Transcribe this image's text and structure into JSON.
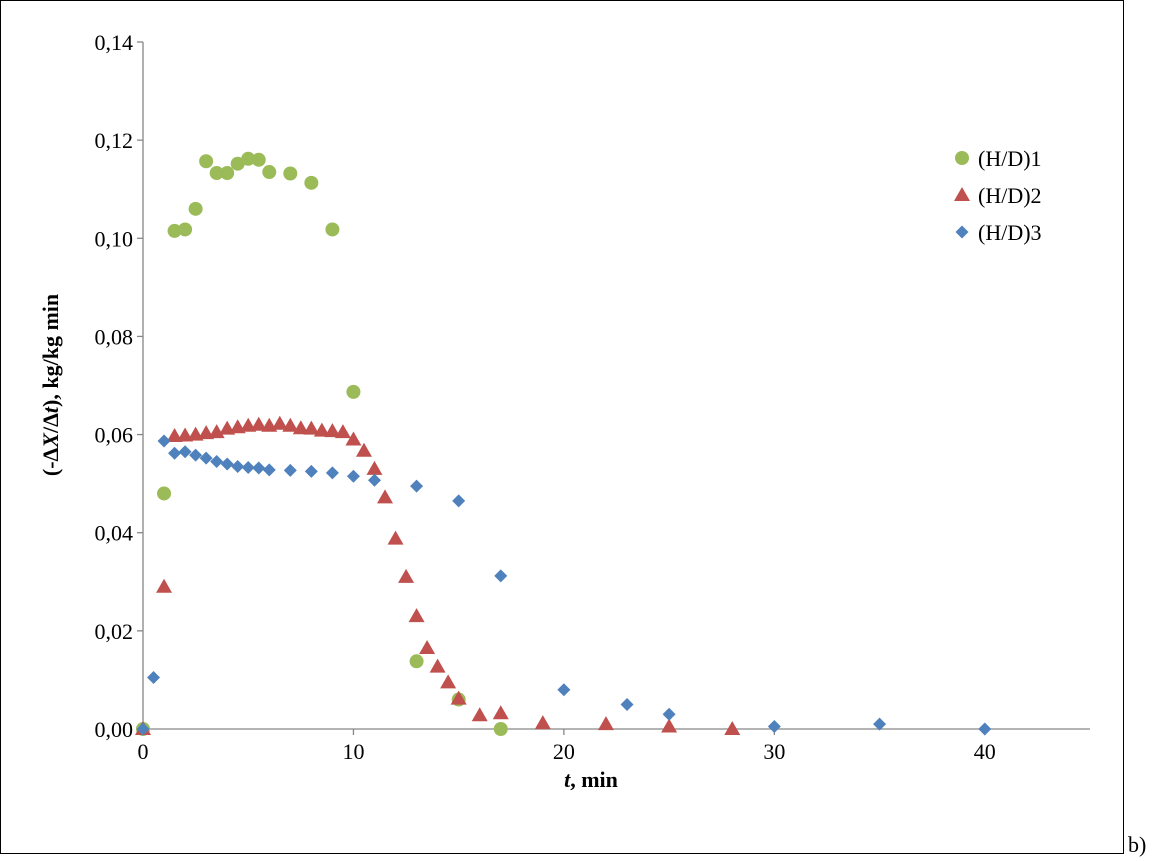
{
  "chart_data": {
    "type": "scatter",
    "title": "",
    "xlabel_italic": "t",
    "xlabel_rest": ", min",
    "ylabel_pre": "(-Δ",
    "ylabel_x": "X",
    "ylabel_mid": "/Δ",
    "ylabel_t": "t",
    "ylabel_post": "), kg/kg min",
    "xlim": [
      0,
      45
    ],
    "ylim": [
      0,
      0.14
    ],
    "x_ticks": [
      0,
      10,
      20,
      30,
      40
    ],
    "x_tick_labels": [
      "0",
      "10",
      "20",
      "30",
      "40"
    ],
    "y_ticks": [
      0,
      0.02,
      0.04,
      0.06,
      0.08,
      0.1,
      0.12,
      0.14
    ],
    "y_tick_labels": [
      "0,00",
      "0,02",
      "0,04",
      "0,06",
      "0,08",
      "0,10",
      "0,12",
      "0,14"
    ],
    "grid": false,
    "legend_position": "top-right",
    "panel_label": "b)",
    "series": [
      {
        "name": "(H/D)1",
        "marker": "circle",
        "color": "#9BBB59",
        "points": [
          [
            0,
            0
          ],
          [
            1,
            0.048
          ],
          [
            1.5,
            0.1015
          ],
          [
            2,
            0.1018
          ],
          [
            2.5,
            0.106
          ],
          [
            3,
            0.1157
          ],
          [
            3.5,
            0.1133
          ],
          [
            4,
            0.1133
          ],
          [
            4.5,
            0.1152
          ],
          [
            5,
            0.1162
          ],
          [
            5.5,
            0.116
          ],
          [
            6,
            0.1135
          ],
          [
            7,
            0.1132
          ],
          [
            8,
            0.1113
          ],
          [
            9,
            0.1018
          ],
          [
            10,
            0.0687
          ],
          [
            13,
            0.0138
          ],
          [
            15,
            0.006
          ],
          [
            17,
            0
          ]
        ]
      },
      {
        "name": "(H/D)2",
        "marker": "triangle",
        "color": "#C0504D",
        "points": [
          [
            0,
            0
          ],
          [
            1,
            0.029
          ],
          [
            1.5,
            0.0597
          ],
          [
            2,
            0.0598
          ],
          [
            2.5,
            0.06
          ],
          [
            3,
            0.0603
          ],
          [
            3.5,
            0.0605
          ],
          [
            4,
            0.0612
          ],
          [
            4.5,
            0.0615
          ],
          [
            5,
            0.0618
          ],
          [
            5.5,
            0.062
          ],
          [
            6,
            0.0618
          ],
          [
            6.5,
            0.0622
          ],
          [
            7,
            0.0618
          ],
          [
            7.5,
            0.0613
          ],
          [
            8,
            0.0612
          ],
          [
            8.5,
            0.0608
          ],
          [
            9,
            0.0607
          ],
          [
            9.5,
            0.0605
          ],
          [
            10,
            0.059
          ],
          [
            10.5,
            0.0567
          ],
          [
            11,
            0.053
          ],
          [
            11.5,
            0.0472
          ],
          [
            12,
            0.0388
          ],
          [
            12.5,
            0.031
          ],
          [
            13,
            0.023
          ],
          [
            13.5,
            0.0165
          ],
          [
            14,
            0.0127
          ],
          [
            14.5,
            0.0095
          ],
          [
            15,
            0.0062
          ],
          [
            16,
            0.0028
          ],
          [
            17,
            0.0032
          ],
          [
            19,
            0.0012
          ],
          [
            22,
            0.001
          ],
          [
            25,
            0.0005
          ],
          [
            28,
            0
          ]
        ]
      },
      {
        "name": "(H/D)3",
        "marker": "diamond",
        "color": "#4F81BD",
        "points": [
          [
            0,
            0
          ],
          [
            0.5,
            0.0105
          ],
          [
            1,
            0.0587
          ],
          [
            1.5,
            0.0562
          ],
          [
            2,
            0.0565
          ],
          [
            2.5,
            0.0558
          ],
          [
            3,
            0.0552
          ],
          [
            3.5,
            0.0545
          ],
          [
            4,
            0.054
          ],
          [
            4.5,
            0.0535
          ],
          [
            5,
            0.0533
          ],
          [
            5.5,
            0.0532
          ],
          [
            6,
            0.0528
          ],
          [
            7,
            0.0527
          ],
          [
            8,
            0.0525
          ],
          [
            9,
            0.0522
          ],
          [
            10,
            0.0515
          ],
          [
            11,
            0.0507
          ],
          [
            13,
            0.0495
          ],
          [
            15,
            0.0465
          ],
          [
            17,
            0.0312
          ],
          [
            20,
            0.008
          ],
          [
            23,
            0.005
          ],
          [
            25,
            0.003
          ],
          [
            30,
            0.0005
          ],
          [
            35,
            0.001
          ],
          [
            40,
            0
          ]
        ]
      }
    ]
  }
}
